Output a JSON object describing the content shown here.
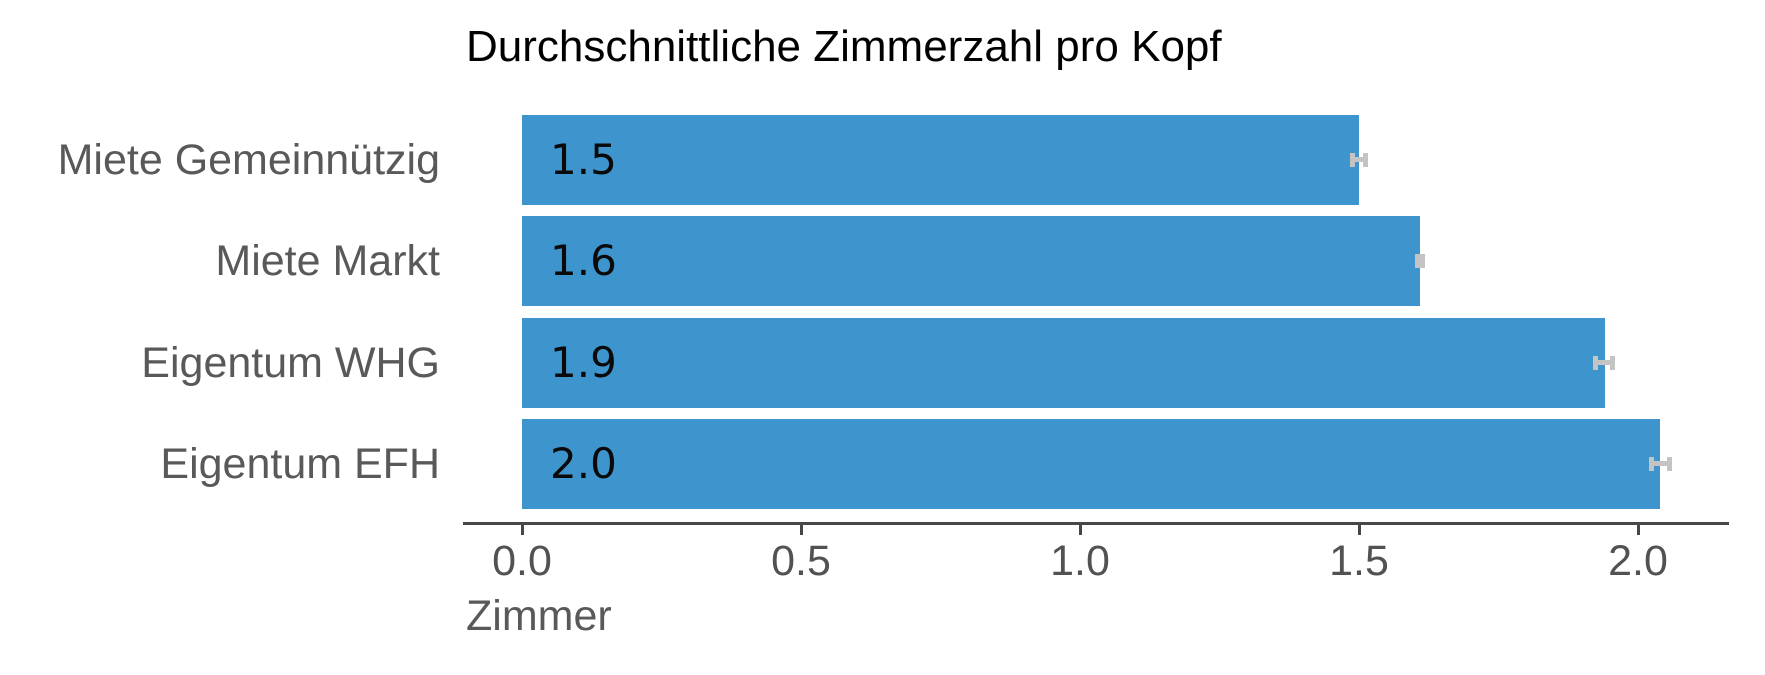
{
  "chart_data": {
    "type": "bar",
    "orientation": "horizontal",
    "title": "Durchschnittliche Zimmerzahl pro Kopf",
    "categories": [
      "Miete Gemeinnützig",
      "Miete Markt",
      "Eigentum WHG",
      "Eigentum EFH"
    ],
    "values": [
      1.5,
      1.61,
      1.94,
      2.04
    ],
    "errors": [
      0.016,
      0.009,
      0.02,
      0.021
    ],
    "bar_labels": [
      "1.5",
      "1.6",
      "1.9",
      "2.0"
    ],
    "xlabel": "Zimmer",
    "xticks": [
      0.0,
      0.5,
      1.0,
      1.5,
      2.0
    ],
    "xtick_labels": [
      "0.0",
      "0.5",
      "1.0",
      "1.5",
      "2.0"
    ],
    "xlim": [
      0,
      2.16
    ],
    "grid": false,
    "legend": "none",
    "colors": {
      "bar": "#3E95CD",
      "error_bar": "#C4C4C4",
      "category_label": "#595959",
      "tick_label": "#525252",
      "axis_line": "#474747",
      "value_label": "#0A0A0A",
      "title": "#000000",
      "background": "#FFFFFF"
    }
  }
}
